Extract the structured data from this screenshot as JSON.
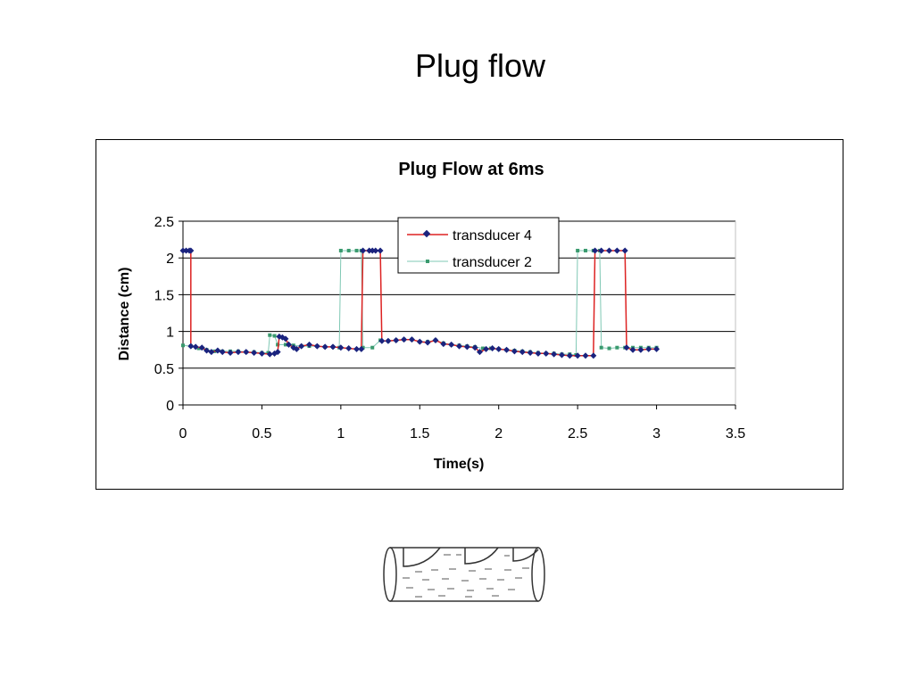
{
  "slide": {
    "title": "Plug flow"
  },
  "chart_data": {
    "type": "line",
    "title": "Plug Flow at  6ms",
    "xlabel": "Time(s)",
    "ylabel": "Distance (cm)",
    "xlim": [
      0,
      3.5
    ],
    "ylim": [
      0,
      2.5
    ],
    "x_ticks": [
      "0",
      "0.5",
      "1",
      "1.5",
      "2",
      "2.5",
      "3",
      "3.5"
    ],
    "y_ticks": [
      "0",
      "0.5",
      "1",
      "1.5",
      "2",
      "2.5"
    ],
    "grid": "horizontal",
    "legend_position": "top-center",
    "series": [
      {
        "name": "transducer 4",
        "line_color": "#dd2222",
        "marker_color": "#1a237e",
        "marker": "diamond",
        "points": [
          [
            0.0,
            2.1
          ],
          [
            0.02,
            2.1
          ],
          [
            0.04,
            2.1
          ],
          [
            0.05,
            2.1
          ],
          [
            0.05,
            0.8
          ],
          [
            0.08,
            0.79
          ],
          [
            0.12,
            0.78
          ],
          [
            0.15,
            0.74
          ],
          [
            0.18,
            0.72
          ],
          [
            0.22,
            0.74
          ],
          [
            0.25,
            0.72
          ],
          [
            0.3,
            0.71
          ],
          [
            0.35,
            0.72
          ],
          [
            0.4,
            0.72
          ],
          [
            0.45,
            0.71
          ],
          [
            0.5,
            0.7
          ],
          [
            0.55,
            0.69
          ],
          [
            0.58,
            0.7
          ],
          [
            0.6,
            0.72
          ],
          [
            0.61,
            0.93
          ],
          [
            0.63,
            0.92
          ],
          [
            0.65,
            0.9
          ],
          [
            0.67,
            0.82
          ],
          [
            0.7,
            0.78
          ],
          [
            0.72,
            0.76
          ],
          [
            0.75,
            0.8
          ],
          [
            0.8,
            0.82
          ],
          [
            0.85,
            0.8
          ],
          [
            0.9,
            0.79
          ],
          [
            0.95,
            0.79
          ],
          [
            1.0,
            0.78
          ],
          [
            1.05,
            0.77
          ],
          [
            1.1,
            0.76
          ],
          [
            1.13,
            0.76
          ],
          [
            1.14,
            2.1
          ],
          [
            1.18,
            2.1
          ],
          [
            1.2,
            2.1
          ],
          [
            1.22,
            2.1
          ],
          [
            1.25,
            2.1
          ],
          [
            1.26,
            0.87
          ],
          [
            1.3,
            0.87
          ],
          [
            1.35,
            0.88
          ],
          [
            1.4,
            0.89
          ],
          [
            1.45,
            0.89
          ],
          [
            1.5,
            0.86
          ],
          [
            1.55,
            0.85
          ],
          [
            1.6,
            0.88
          ],
          [
            1.65,
            0.83
          ],
          [
            1.7,
            0.82
          ],
          [
            1.75,
            0.8
          ],
          [
            1.8,
            0.79
          ],
          [
            1.85,
            0.78
          ],
          [
            1.88,
            0.72
          ],
          [
            1.92,
            0.76
          ],
          [
            1.96,
            0.77
          ],
          [
            2.0,
            0.76
          ],
          [
            2.05,
            0.75
          ],
          [
            2.1,
            0.73
          ],
          [
            2.15,
            0.72
          ],
          [
            2.2,
            0.71
          ],
          [
            2.25,
            0.7
          ],
          [
            2.3,
            0.7
          ],
          [
            2.35,
            0.69
          ],
          [
            2.4,
            0.68
          ],
          [
            2.45,
            0.67
          ],
          [
            2.5,
            0.67
          ],
          [
            2.55,
            0.67
          ],
          [
            2.6,
            0.67
          ],
          [
            2.61,
            2.1
          ],
          [
            2.65,
            2.1
          ],
          [
            2.7,
            2.1
          ],
          [
            2.75,
            2.1
          ],
          [
            2.8,
            2.1
          ],
          [
            2.81,
            0.78
          ],
          [
            2.85,
            0.75
          ],
          [
            2.9,
            0.75
          ],
          [
            2.95,
            0.76
          ],
          [
            3.0,
            0.76
          ]
        ]
      },
      {
        "name": "transducer 2",
        "line_color": "#7fc8b4",
        "marker_color": "#3a9a6e",
        "marker": "square",
        "points": [
          [
            0.0,
            0.81
          ],
          [
            0.05,
            0.8
          ],
          [
            0.1,
            0.77
          ],
          [
            0.15,
            0.75
          ],
          [
            0.2,
            0.73
          ],
          [
            0.25,
            0.73
          ],
          [
            0.3,
            0.73
          ],
          [
            0.35,
            0.73
          ],
          [
            0.4,
            0.72
          ],
          [
            0.45,
            0.72
          ],
          [
            0.5,
            0.71
          ],
          [
            0.54,
            0.71
          ],
          [
            0.55,
            0.95
          ],
          [
            0.58,
            0.94
          ],
          [
            0.6,
            0.82
          ],
          [
            0.65,
            0.82
          ],
          [
            0.7,
            0.81
          ],
          [
            0.75,
            0.8
          ],
          [
            0.8,
            0.8
          ],
          [
            0.85,
            0.8
          ],
          [
            0.9,
            0.79
          ],
          [
            0.95,
            0.79
          ],
          [
            0.99,
            0.78
          ],
          [
            1.0,
            2.1
          ],
          [
            1.05,
            2.1
          ],
          [
            1.1,
            2.1
          ],
          [
            1.13,
            2.1
          ],
          [
            1.14,
            0.78
          ],
          [
            1.2,
            0.78
          ],
          [
            1.25,
            0.88
          ],
          [
            1.3,
            0.87
          ],
          [
            1.35,
            0.88
          ],
          [
            1.4,
            0.89
          ],
          [
            1.45,
            0.89
          ],
          [
            1.5,
            0.86
          ],
          [
            1.55,
            0.86
          ],
          [
            1.6,
            0.88
          ],
          [
            1.65,
            0.84
          ],
          [
            1.7,
            0.82
          ],
          [
            1.75,
            0.81
          ],
          [
            1.8,
            0.8
          ],
          [
            1.85,
            0.79
          ],
          [
            1.9,
            0.77
          ],
          [
            1.95,
            0.77
          ],
          [
            2.0,
            0.76
          ],
          [
            2.05,
            0.75
          ],
          [
            2.1,
            0.74
          ],
          [
            2.15,
            0.73
          ],
          [
            2.2,
            0.72
          ],
          [
            2.25,
            0.71
          ],
          [
            2.3,
            0.7
          ],
          [
            2.35,
            0.7
          ],
          [
            2.4,
            0.69
          ],
          [
            2.45,
            0.69
          ],
          [
            2.49,
            0.68
          ],
          [
            2.5,
            2.1
          ],
          [
            2.55,
            2.1
          ],
          [
            2.6,
            2.1
          ],
          [
            2.64,
            2.1
          ],
          [
            2.65,
            0.78
          ],
          [
            2.7,
            0.77
          ],
          [
            2.75,
            0.78
          ],
          [
            2.8,
            0.78
          ],
          [
            2.85,
            0.78
          ],
          [
            2.9,
            0.78
          ],
          [
            2.95,
            0.78
          ],
          [
            3.0,
            0.78
          ]
        ]
      }
    ]
  }
}
